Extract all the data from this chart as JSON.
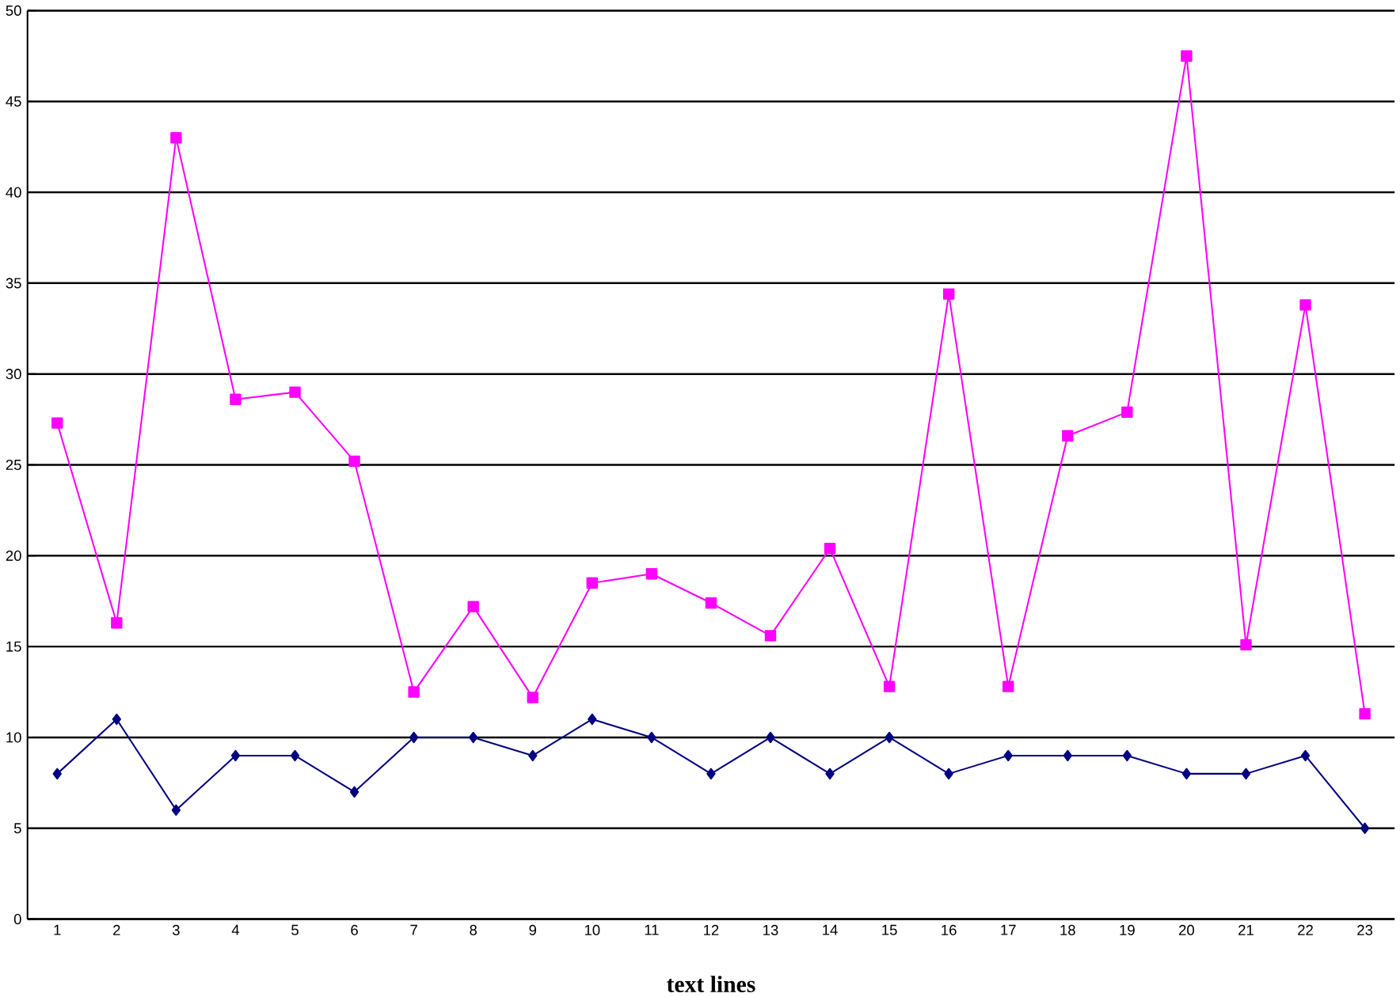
{
  "chart_data": {
    "type": "line",
    "xlabel": "text lines",
    "categories": [
      "1",
      "2",
      "3",
      "4",
      "5",
      "6",
      "7",
      "8",
      "9",
      "10",
      "11",
      "12",
      "13",
      "14",
      "15",
      "16",
      "17",
      "18",
      "19",
      "20",
      "21",
      "22",
      "23"
    ],
    "series": [
      {
        "color": "#ff00ff",
        "marker": "square",
        "values": [
          27.3,
          16.3,
          43,
          28.6,
          29,
          25.2,
          12.5,
          17.2,
          12.2,
          18.5,
          19,
          17.4,
          15.6,
          20.4,
          12.8,
          34.4,
          12.8,
          26.6,
          27.9,
          47.5,
          15.1,
          33.8,
          11.3
        ]
      },
      {
        "color": "#000080",
        "marker": "diamond",
        "values": [
          8,
          11,
          6,
          9,
          9,
          7,
          10,
          10,
          9,
          11,
          10,
          8,
          10,
          8,
          10,
          8,
          9,
          9,
          9,
          8,
          8,
          9,
          5
        ]
      }
    ],
    "ylim": [
      0,
      50
    ],
    "yticks": [
      0,
      5,
      10,
      15,
      20,
      25,
      30,
      35,
      40,
      45,
      50
    ],
    "grid": "y"
  }
}
